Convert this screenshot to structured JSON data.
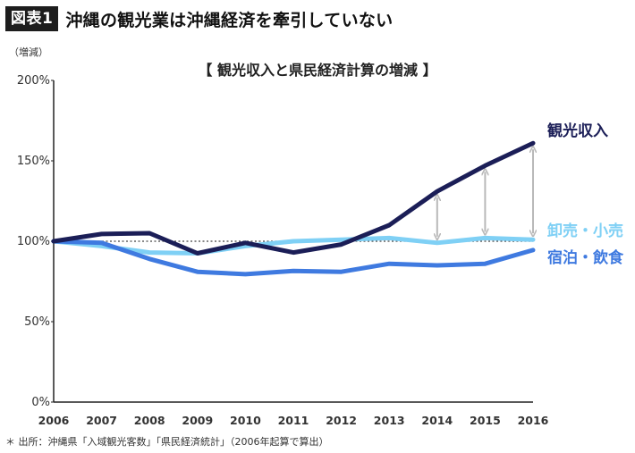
{
  "header": {
    "badge": "図表1",
    "title": "沖縄の観光業は沖縄経済を牽引していない"
  },
  "footer": {
    "source": "＊ 出所：沖縄県「入域観光客数」「県民経済統計」（2006年起算で算出）"
  },
  "chart_data": {
    "type": "line",
    "title": "【 観光収入と県民経済計算の増減 】",
    "ylabel": "（増減）",
    "xlabel": "",
    "x": [
      "2006",
      "2007",
      "2008",
      "2009",
      "2010",
      "2011",
      "2012",
      "2013",
      "2014",
      "2015",
      "2016"
    ],
    "ylim": [
      0,
      200
    ],
    "yticks": [
      0,
      50,
      100,
      150,
      200
    ],
    "ytick_labels": [
      "0%",
      "50%",
      "100%",
      "150%",
      "200%"
    ],
    "baseline": 100,
    "grid": false,
    "legend": "inline-right",
    "series": [
      {
        "name": "観光収入",
        "color": "#1b1e57",
        "values": [
          100,
          104.5,
          105,
          92.5,
          99,
          93,
          98,
          110,
          131,
          147,
          161
        ]
      },
      {
        "name": "卸売・小売",
        "color": "#7fd0f5",
        "values": [
          100,
          97,
          93,
          92.5,
          97,
          100,
          101,
          102,
          99,
          102,
          101
        ]
      },
      {
        "name": "宿泊・飲食",
        "color": "#3f7ae0",
        "values": [
          100,
          99,
          89,
          81,
          79.5,
          81.5,
          81,
          86,
          85,
          86,
          94.5
        ]
      }
    ],
    "gap_arrows": [
      {
        "x": "2014",
        "from": 99,
        "to": 131
      },
      {
        "x": "2015",
        "from": 102,
        "to": 147
      },
      {
        "x": "2016",
        "from": 101,
        "to": 161
      }
    ]
  }
}
